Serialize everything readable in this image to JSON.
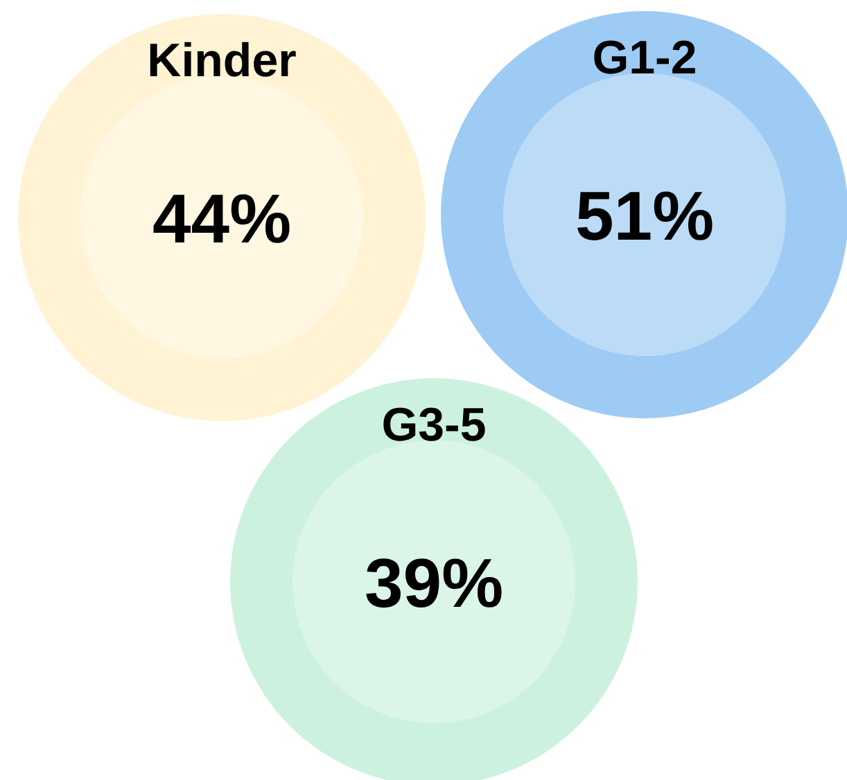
{
  "chart_data": {
    "type": "other",
    "categories": [
      "Kinder",
      "G1-2",
      "G3-5"
    ],
    "values": [
      44,
      51,
      39
    ],
    "value_labels": [
      "44%",
      "51%",
      "39%"
    ],
    "colors": [
      "#fff3d4",
      "#9ecbf4",
      "#cdf1df"
    ]
  }
}
